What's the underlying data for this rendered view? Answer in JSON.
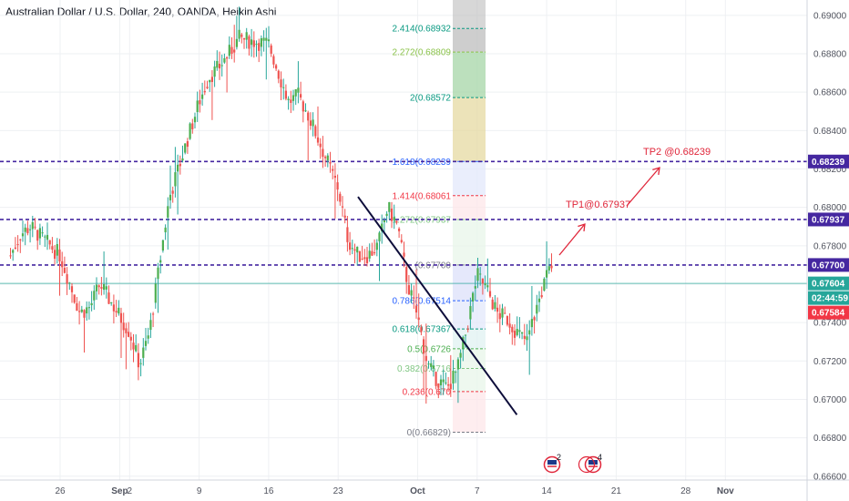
{
  "title": "Australian Dollar / U.S. Dollar, 240, OANDA, Heikin Ashi",
  "colors": {
    "up": "#26a69a",
    "up_body": "#4caf50",
    "down": "#ef5350",
    "level_line": "#4527a0",
    "current_line": "#26a69a",
    "trendline": "#0d0d3a",
    "annotation": "#e0263a",
    "grid": "#eef0f3",
    "axis_text": "#50535e"
  },
  "chart_data": {
    "type": "candlestick",
    "style": "Heikin Ashi",
    "symbol": "AUD/USD",
    "interval": "240",
    "source": "OANDA",
    "ylim": [
      0.6658,
      0.6908
    ],
    "y_ticks": [
      "0.69000",
      "0.68800",
      "0.68600",
      "0.68400",
      "0.68200",
      "0.68000",
      "0.67800",
      "0.67600",
      "0.67400",
      "0.67200",
      "0.67000",
      "0.66800",
      "0.66600"
    ],
    "x_ticks": [
      "26",
      "Sep",
      "2",
      "9",
      "16",
      "23",
      "Oct",
      "7",
      "14",
      "21",
      "28",
      "Nov"
    ],
    "price_path": [
      {
        "x": "Aug 21",
        "y": 0.6775
      },
      {
        "x": "Aug 22",
        "y": 0.6786
      },
      {
        "x": "Aug 23",
        "y": 0.679
      },
      {
        "x": "Aug 26",
        "y": 0.6775
      },
      {
        "x": "Aug 27",
        "y": 0.676
      },
      {
        "x": "Aug 28",
        "y": 0.6745
      },
      {
        "x": "Aug 29",
        "y": 0.6748
      },
      {
        "x": "Aug 30",
        "y": 0.676
      },
      {
        "x": "Sep 2",
        "y": 0.6735
      },
      {
        "x": "Sep 3",
        "y": 0.6718
      },
      {
        "x": "Sep 4",
        "y": 0.6735
      },
      {
        "x": "Sep 5",
        "y": 0.677
      },
      {
        "x": "Sep 6",
        "y": 0.6805
      },
      {
        "x": "Sep 9",
        "y": 0.6855
      },
      {
        "x": "Sep 10",
        "y": 0.6868
      },
      {
        "x": "Sep 11",
        "y": 0.6873
      },
      {
        "x": "Sep 12",
        "y": 0.688
      },
      {
        "x": "Sep 13",
        "y": 0.6888
      },
      {
        "x": "Sep 16",
        "y": 0.6885
      },
      {
        "x": "Sep 17",
        "y": 0.687
      },
      {
        "x": "Sep 18",
        "y": 0.6855
      },
      {
        "x": "Sep 19",
        "y": 0.6858
      },
      {
        "x": "Sep 20",
        "y": 0.6848
      },
      {
        "x": "Sep 23",
        "y": 0.681
      },
      {
        "x": "Sep 24",
        "y": 0.6783
      },
      {
        "x": "Sep 25",
        "y": 0.6775
      },
      {
        "x": "Sep 26",
        "y": 0.6775
      },
      {
        "x": "Sep 27",
        "y": 0.678
      },
      {
        "x": "Sep 28",
        "y": 0.68
      },
      {
        "x": "Sep 29",
        "y": 0.679
      },
      {
        "x": "Sep 30",
        "y": 0.676
      },
      {
        "x": "Oct 1",
        "y": 0.6743
      },
      {
        "x": "Oct 2",
        "y": 0.6718
      },
      {
        "x": "Oct 3",
        "y": 0.671
      },
      {
        "x": "Oct 4",
        "y": 0.6706
      },
      {
        "x": "Oct 5",
        "y": 0.6715
      },
      {
        "x": "Oct 6",
        "y": 0.6738
      },
      {
        "x": "Oct 7",
        "y": 0.6765
      },
      {
        "x": "Oct 8",
        "y": 0.6757
      },
      {
        "x": "Oct 9",
        "y": 0.6745
      },
      {
        "x": "Oct 10",
        "y": 0.6742
      },
      {
        "x": "Oct 11",
        "y": 0.6735
      },
      {
        "x": "Oct 12",
        "y": 0.673
      },
      {
        "x": "Oct 13",
        "y": 0.6748
      },
      {
        "x": "Oct 14",
        "y": 0.6764
      },
      {
        "x": "Oct 14.5",
        "y": 0.677
      }
    ],
    "horizontal_levels": [
      0.67937,
      0.68239,
      0.677
    ],
    "current_price": 0.67604,
    "trendline": {
      "x1": "Sep 25",
      "y1": 0.68055,
      "x2": "Oct 11",
      "y2": 0.6692
    },
    "fibonacci": {
      "levels": [
        {
          "ratio": "0",
          "price": "0.66829",
          "label": "0(0.66829)",
          "color": "#787b86"
        },
        {
          "ratio": "0.236",
          "price": "0.67041",
          "label": "0.236(0.670",
          "color": "#f23645"
        },
        {
          "ratio": "0.382",
          "price": "0.67161",
          "label": "0.382(0.6716",
          "color": "#81c784"
        },
        {
          "ratio": "0.5",
          "price": "0.67264",
          "label": "0.5(0.6726",
          "color": "#4caf50"
        },
        {
          "ratio": "0.618",
          "price": "0.67367",
          "label": "0.618(0.67367",
          "color": "#089981"
        },
        {
          "ratio": "0.786",
          "price": "0.67514",
          "label": "0.786(0.67514",
          "color": "#2962ff"
        },
        {
          "ratio": "1",
          "price": "0.67700",
          "label": "(0.67700",
          "color": "#787b86"
        },
        {
          "ratio": "1.272",
          "price": "0.67937",
          "label": "1.272(0.67937",
          "color": "#81c784"
        },
        {
          "ratio": "1.414",
          "price": "0.68061",
          "label": "1.414(0.68061",
          "color": "#f23645"
        },
        {
          "ratio": "1.618",
          "price": "0.68239",
          "label": "1.618(0.68239",
          "color": "#2962ff"
        },
        {
          "ratio": "2",
          "price": "0.68572",
          "label": "2(0.68572",
          "color": "#089981"
        },
        {
          "ratio": "2.272",
          "price": "0.68809",
          "label": "2.272(0.68809",
          "color": "#8bc34a"
        },
        {
          "ratio": "2.414",
          "price": "0.68932",
          "label": "2.414(0.68932",
          "color": "#089981"
        }
      ]
    },
    "price_tags": [
      {
        "label": "0.69000",
        "kind": "tick"
      },
      {
        "label": "0.68239",
        "kind": "level"
      },
      {
        "label": "0.67937",
        "kind": "level"
      },
      {
        "label": "0.67700",
        "kind": "level"
      },
      {
        "label": "0.67604",
        "kind": "current"
      },
      {
        "label": "02:44:59",
        "kind": "countdown"
      },
      {
        "label": "0.67584",
        "kind": "red"
      }
    ],
    "annotations": [
      {
        "text": "TP2 @0.68239"
      },
      {
        "text": "TP1@0.67937"
      }
    ],
    "event_flags": [
      {
        "label": "2"
      },
      {
        "label": "4"
      }
    ]
  }
}
